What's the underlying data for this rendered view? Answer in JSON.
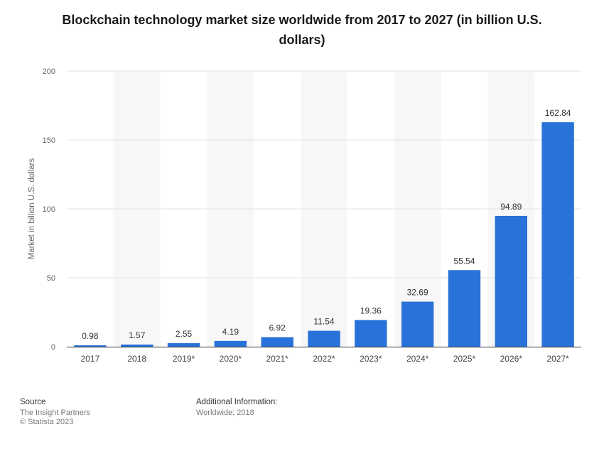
{
  "chart_data": {
    "type": "bar",
    "title": "Blockchain technology market size worldwide from 2017 to 2027 (in billion U.S. dollars)",
    "xlabel": "",
    "ylabel": "Market in billion U.S. dollars",
    "ylim": [
      0,
      200
    ],
    "yticks": [
      "0",
      "50",
      "100",
      "150",
      "200"
    ],
    "categories": [
      "2017",
      "2018",
      "2019*",
      "2020*",
      "2021*",
      "2022*",
      "2023*",
      "2024*",
      "2025*",
      "2026*",
      "2027*"
    ],
    "values": [
      0.98,
      1.57,
      2.55,
      4.19,
      6.92,
      11.54,
      19.36,
      32.69,
      55.54,
      94.89,
      162.84
    ],
    "value_labels": [
      "0.98",
      "1.57",
      "2.55",
      "4.19",
      "6.92",
      "11.54",
      "19.36",
      "32.69",
      "55.54",
      "94.89",
      "162.84"
    ],
    "bar_color": "#2872d9",
    "grid": true,
    "legend": "none"
  },
  "footer": {
    "source_heading": "Source",
    "source_lines": [
      "The Insight Partners",
      "© Statista 2023"
    ],
    "info_heading": "Additional Information:",
    "info_lines": [
      "Worldwide; 2018"
    ]
  }
}
